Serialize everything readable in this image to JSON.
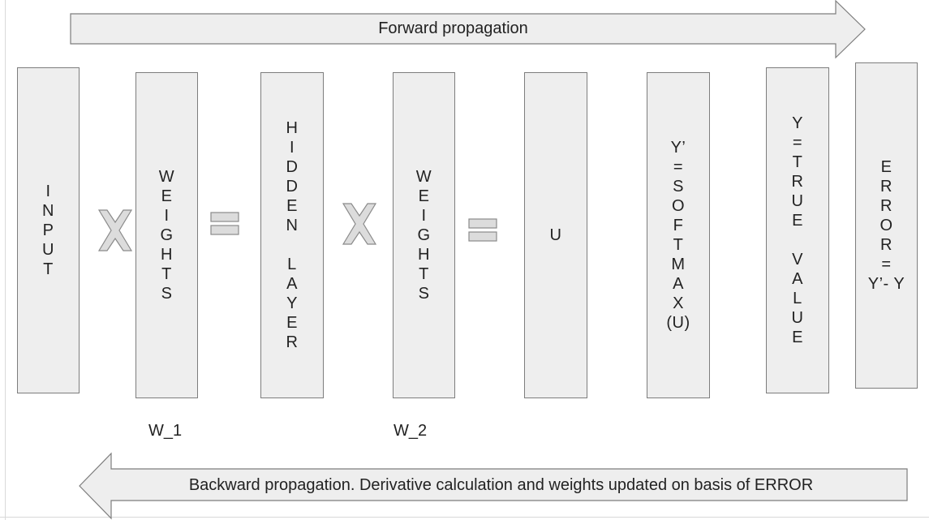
{
  "forward_arrow": {
    "label": "Forward propagation"
  },
  "backward_arrow": {
    "label": "Backward propagation. Derivative calculation and weights updated on basis of ERROR"
  },
  "columns": [
    {
      "id": "input",
      "text": "I\nN\nP\nU\nT"
    },
    {
      "id": "weights-1",
      "text": "W\nE\nI\nG\nH\nT\nS"
    },
    {
      "id": "hidden-layer",
      "text": "H\nI\nD\nD\nE\nN\n\nL\nA\nY\nE\nR"
    },
    {
      "id": "weights-2",
      "text": "W\nE\nI\nG\nH\nT\nS"
    },
    {
      "id": "u",
      "text": "U"
    },
    {
      "id": "softmax",
      "text": "Y’\n=\nS\nO\nF\nT\nM\nA\nX\n(U)"
    },
    {
      "id": "true-value",
      "text": "Y\n=\nT\nR\nU\nE\n\nV\nA\nL\nU\nE"
    },
    {
      "id": "error",
      "text": "E\nR\nR\nO\nR\n=\nY’- Y"
    }
  ],
  "weight_labels": [
    "W_1",
    "W_2"
  ],
  "colors": {
    "fill": "#eeeeee",
    "stroke": "#7d7d7d",
    "text": "#222222"
  }
}
